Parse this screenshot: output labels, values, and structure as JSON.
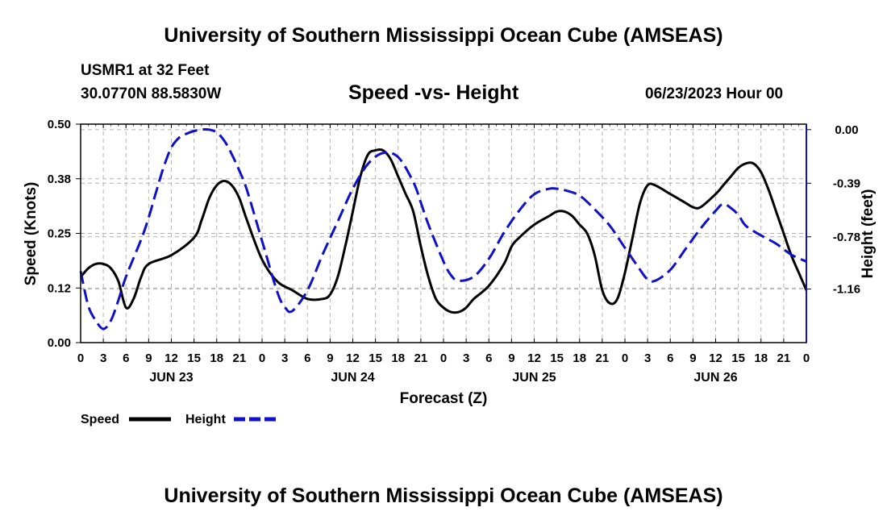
{
  "header": {
    "title": "University of Southern Mississippi Ocean Cube (AMSEAS)",
    "station": "USMR1 at 32 Feet",
    "coords": "30.0770N  88.5830W",
    "date": "06/23/2023 Hour 00"
  },
  "footer": {
    "title": "University of Southern Mississippi Ocean Cube (AMSEAS)"
  },
  "colors": {
    "speed": "#000000",
    "height": "#1010c8",
    "grid": "#b4b4b4"
  },
  "chart_data": {
    "type": "line",
    "title": "Speed -vs- Height",
    "xlabel": "Forecast (Z)",
    "ylabel_left": "Speed (Knots)",
    "ylabel_right": "Height (feet)",
    "x_range_hours": [
      0,
      96
    ],
    "y_left_range": [
      0,
      0.5
    ],
    "y_right_range": [
      -1.55,
      0.04
    ],
    "left_ticks": [
      {
        "value": 0.0,
        "label": "0.00"
      },
      {
        "value": 0.125,
        "label": "0.12"
      },
      {
        "value": 0.25,
        "label": "0.25"
      },
      {
        "value": 0.375,
        "label": "0.38"
      },
      {
        "value": 0.5,
        "label": "0.50"
      }
    ],
    "right_ticks": [
      {
        "value": 0.0,
        "label": "0.00"
      },
      {
        "value": -0.39,
        "label": "-0.39"
      },
      {
        "value": -0.78,
        "label": "-0.78"
      },
      {
        "value": -1.16,
        "label": "-1.16"
      }
    ],
    "x_ticks": [
      {
        "hour": 0,
        "label": "0"
      },
      {
        "hour": 3,
        "label": "3"
      },
      {
        "hour": 6,
        "label": "6"
      },
      {
        "hour": 9,
        "label": "9"
      },
      {
        "hour": 12,
        "label": "12"
      },
      {
        "hour": 15,
        "label": "15"
      },
      {
        "hour": 18,
        "label": "18"
      },
      {
        "hour": 21,
        "label": "21"
      },
      {
        "hour": 24,
        "label": "0"
      },
      {
        "hour": 27,
        "label": "3"
      },
      {
        "hour": 30,
        "label": "6"
      },
      {
        "hour": 33,
        "label": "9"
      },
      {
        "hour": 36,
        "label": "12"
      },
      {
        "hour": 39,
        "label": "15"
      },
      {
        "hour": 42,
        "label": "18"
      },
      {
        "hour": 45,
        "label": "21"
      },
      {
        "hour": 48,
        "label": "0"
      },
      {
        "hour": 51,
        "label": "3"
      },
      {
        "hour": 54,
        "label": "6"
      },
      {
        "hour": 57,
        "label": "9"
      },
      {
        "hour": 60,
        "label": "12"
      },
      {
        "hour": 63,
        "label": "15"
      },
      {
        "hour": 66,
        "label": "18"
      },
      {
        "hour": 69,
        "label": "21"
      },
      {
        "hour": 72,
        "label": "0"
      },
      {
        "hour": 75,
        "label": "3"
      },
      {
        "hour": 78,
        "label": "6"
      },
      {
        "hour": 81,
        "label": "9"
      },
      {
        "hour": 84,
        "label": "12"
      },
      {
        "hour": 87,
        "label": "15"
      },
      {
        "hour": 90,
        "label": "18"
      },
      {
        "hour": 93,
        "label": "21"
      },
      {
        "hour": 96,
        "label": "0"
      }
    ],
    "day_labels": [
      {
        "hour": 12,
        "label": "JUN 23"
      },
      {
        "hour": 36,
        "label": "JUN 24"
      },
      {
        "hour": 60,
        "label": "JUN 25"
      },
      {
        "hour": 84,
        "label": "JUN 26"
      }
    ],
    "series": [
      {
        "name": "Speed",
        "axis": "left",
        "style": "solid",
        "x": [
          0,
          1,
          2,
          3,
          4,
          5,
          6,
          7,
          8,
          9,
          12,
          15,
          16,
          17,
          18,
          19,
          20,
          21,
          22,
          24,
          26,
          28,
          30,
          32,
          33,
          34,
          35,
          36,
          37,
          38,
          39,
          40,
          41,
          42,
          43,
          44,
          45,
          46,
          47,
          48,
          49,
          50,
          51,
          52,
          54,
          56,
          57,
          58,
          60,
          62,
          63,
          64,
          65,
          66,
          67,
          68,
          69,
          70,
          71,
          72,
          73,
          74,
          75,
          76,
          78,
          80,
          81,
          82,
          84,
          85,
          86,
          87,
          88,
          89,
          90,
          91,
          92,
          93,
          94,
          95,
          96
        ],
        "values": [
          0.15,
          0.17,
          0.18,
          0.18,
          0.17,
          0.14,
          0.08,
          0.1,
          0.15,
          0.18,
          0.2,
          0.24,
          0.28,
          0.33,
          0.36,
          0.37,
          0.36,
          0.33,
          0.28,
          0.19,
          0.14,
          0.12,
          0.1,
          0.1,
          0.11,
          0.15,
          0.22,
          0.3,
          0.38,
          0.43,
          0.44,
          0.44,
          0.42,
          0.38,
          0.34,
          0.3,
          0.22,
          0.15,
          0.1,
          0.08,
          0.07,
          0.07,
          0.08,
          0.1,
          0.13,
          0.18,
          0.22,
          0.24,
          0.27,
          0.29,
          0.3,
          0.3,
          0.29,
          0.27,
          0.25,
          0.2,
          0.12,
          0.09,
          0.1,
          0.16,
          0.24,
          0.32,
          0.36,
          0.36,
          0.34,
          0.32,
          0.31,
          0.31,
          0.34,
          0.36,
          0.38,
          0.4,
          0.41,
          0.41,
          0.39,
          0.35,
          0.3,
          0.25,
          0.2,
          0.16,
          0.12
        ]
      },
      {
        "name": "Height",
        "axis": "right",
        "style": "dashed",
        "x": [
          0,
          1,
          2,
          3,
          4,
          5,
          6,
          8,
          9,
          10,
          11,
          12,
          13,
          14,
          15,
          16,
          17,
          18,
          19,
          20,
          21,
          22,
          24,
          26,
          27,
          28,
          30,
          32,
          34,
          36,
          38,
          40,
          42,
          44,
          45,
          46,
          48,
          49,
          50,
          52,
          54,
          56,
          58,
          60,
          62,
          63,
          64,
          66,
          68,
          70,
          72,
          74,
          75,
          76,
          78,
          80,
          82,
          84,
          85,
          86,
          87,
          88,
          90,
          92,
          94,
          96
        ],
        "values": [
          -1.03,
          -1.28,
          -1.39,
          -1.45,
          -1.39,
          -1.24,
          -1.07,
          -0.8,
          -0.64,
          -0.45,
          -0.27,
          -0.13,
          -0.06,
          -0.03,
          -0.01,
          0.0,
          0.0,
          -0.02,
          -0.08,
          -0.18,
          -0.3,
          -0.44,
          -0.81,
          -1.18,
          -1.29,
          -1.32,
          -1.17,
          -0.91,
          -0.67,
          -0.43,
          -0.25,
          -0.17,
          -0.2,
          -0.38,
          -0.53,
          -0.69,
          -0.96,
          -1.06,
          -1.1,
          -1.07,
          -0.94,
          -0.75,
          -0.59,
          -0.47,
          -0.43,
          -0.43,
          -0.44,
          -0.48,
          -0.58,
          -0.7,
          -0.86,
          -1.02,
          -1.09,
          -1.1,
          -1.02,
          -0.87,
          -0.72,
          -0.59,
          -0.54,
          -0.57,
          -0.62,
          -0.7,
          -0.77,
          -0.83,
          -0.91,
          -0.96
        ]
      }
    ],
    "legend": [
      {
        "name": "Speed",
        "style": "solid"
      },
      {
        "name": "Height",
        "style": "dashed"
      }
    ]
  }
}
